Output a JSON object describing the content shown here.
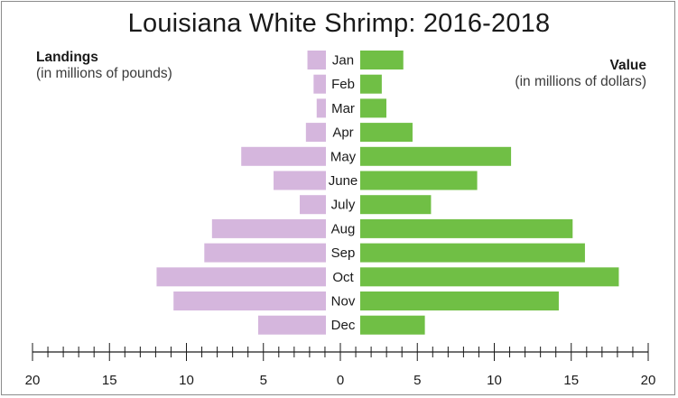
{
  "chart_data": {
    "type": "bar",
    "title": "Louisiana White Shrimp: 2016-2018",
    "categories": [
      "Jan",
      "Feb",
      "Mar",
      "Apr",
      "May",
      "June",
      "July",
      "Aug",
      "Sep",
      "Oct",
      "Nov",
      "Dec"
    ],
    "left_axis": {
      "heading": "Landings",
      "subheading": "(in millions of pounds)"
    },
    "right_axis": {
      "heading": "Value",
      "subheading": "(in millions of dollars)"
    },
    "series": [
      {
        "values": [
          1.2,
          0.8,
          0.6,
          1.3,
          5.5,
          3.4,
          1.7,
          7.4,
          7.9,
          11.0,
          9.9,
          4.4
        ],
        "color": "#d5b6dd"
      },
      {
        "values": [
          2.8,
          1.4,
          1.7,
          3.4,
          9.8,
          7.6,
          4.6,
          13.8,
          14.6,
          16.8,
          12.9,
          4.2
        ],
        "color": "#70bf45"
      }
    ],
    "x_ticks": [
      20,
      15,
      10,
      5,
      0,
      5,
      10,
      15,
      20
    ],
    "xlim": [
      -20,
      20
    ],
    "minor_tick_step": 1,
    "grid": false,
    "legend": "none"
  }
}
